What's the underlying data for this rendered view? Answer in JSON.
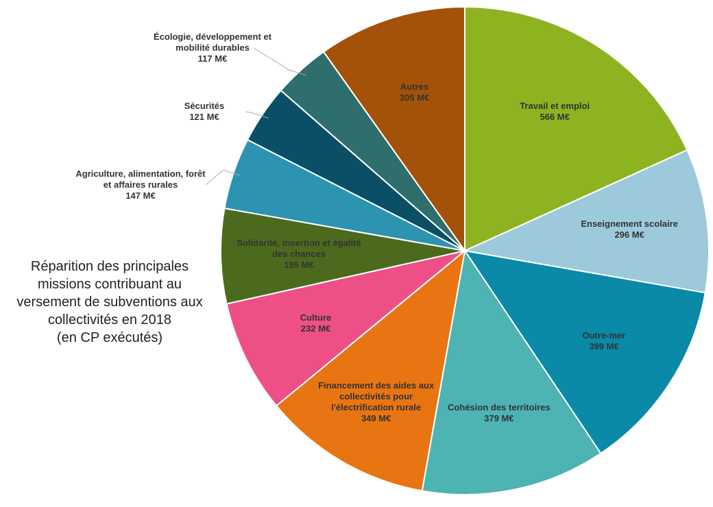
{
  "chart_data": {
    "type": "pie",
    "title": "Réparition des principales missions contribuant au versement de subventions aux collectivités en 2018",
    "subtitle": "(en CP exécutés)",
    "categories": [
      "Travail et emploi",
      "Enseignement scolaire",
      "Outre-mer",
      "Cohésion des territoires",
      "Financement des aides aux collectivités pour l'électrification rurale",
      "Culture",
      "Solidarité, insertion et égalité des chances",
      "Agriculture, alimentation, forêt et affaires rurales",
      "Sécurités",
      "Écologie, développement et mobilité durables",
      "Autres"
    ],
    "values": [
      566,
      296,
      399,
      379,
      349,
      232,
      195,
      147,
      121,
      117,
      305
    ],
    "value_labels": [
      "566 M€",
      "296 M€",
      "399 M€",
      "379 M€",
      "349 M€",
      "232 M€",
      "195 M€",
      "147 M€",
      "121 M€",
      "117 M€",
      "305 M€"
    ],
    "colors": [
      "#8db321",
      "#9ccadb",
      "#0a89a8",
      "#4db3b3",
      "#e87511",
      "#ee4f86",
      "#4c6a1d",
      "#2c93b1",
      "#0b4f66",
      "#2e6e6d",
      "#a4520a"
    ]
  }
}
